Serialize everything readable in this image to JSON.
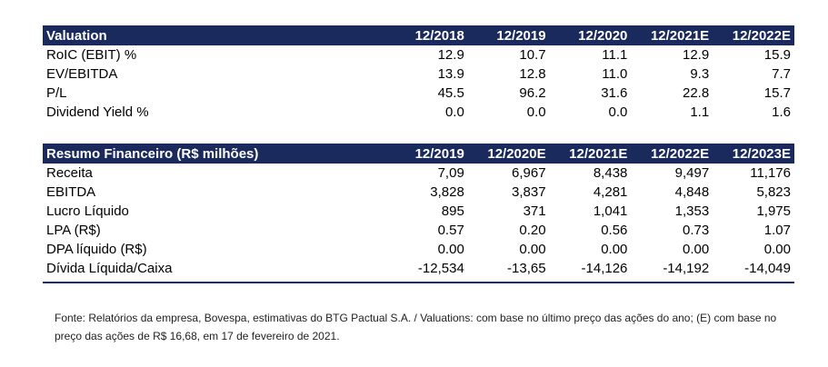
{
  "valuation": {
    "header": [
      "Valuation",
      "12/2018",
      "12/2019",
      "12/2020",
      "12/2021E",
      "12/2022E"
    ],
    "rows": [
      [
        "RoIC (EBIT) %",
        "12.9",
        "10.7",
        "11.1",
        "12.9",
        "15.9"
      ],
      [
        "EV/EBITDA",
        "13.9",
        "12.8",
        "11.0",
        "9.3",
        "7.7"
      ],
      [
        "P/L",
        "45.5",
        "96.2",
        "31.6",
        "22.8",
        "15.7"
      ],
      [
        "Dividend Yield %",
        "0.0",
        "0.0",
        "0.0",
        "1.1",
        "1.6"
      ]
    ]
  },
  "resumo": {
    "header": [
      "Resumo Financeiro (R$ milhões)",
      "12/2019",
      "12/2020E",
      "12/2021E",
      "12/2022E",
      "12/2023E"
    ],
    "rows": [
      [
        "Receita",
        "7,09",
        "6,967",
        "8,438",
        "9,497",
        "11,176"
      ],
      [
        "EBITDA",
        "3,828",
        "3,837",
        "4,281",
        "4,848",
        "5,823"
      ],
      [
        "Lucro Líquido",
        "895",
        "371",
        "1,041",
        "1,353",
        "1,975"
      ],
      [
        "LPA (R$)",
        "0.57",
        "0.20",
        "0.56",
        "0.73",
        "1.07"
      ],
      [
        "DPA líquido (R$)",
        "0.00",
        "0.00",
        "0.00",
        "0.00",
        "0.00"
      ],
      [
        "Dívida Líquida/Caixa",
        "-12,534",
        "-13,65",
        "-14,126",
        "-14,192",
        "-14,049"
      ]
    ]
  },
  "footnote": "Fonte: Relatórios da empresa, Bovespa, estimativas do BTG Pactual S.A. / Valuations: com base no último preço das ações do ano; (E) com base no preço das ações de R$ 16,68, em 17 de fevereiro de 2021."
}
